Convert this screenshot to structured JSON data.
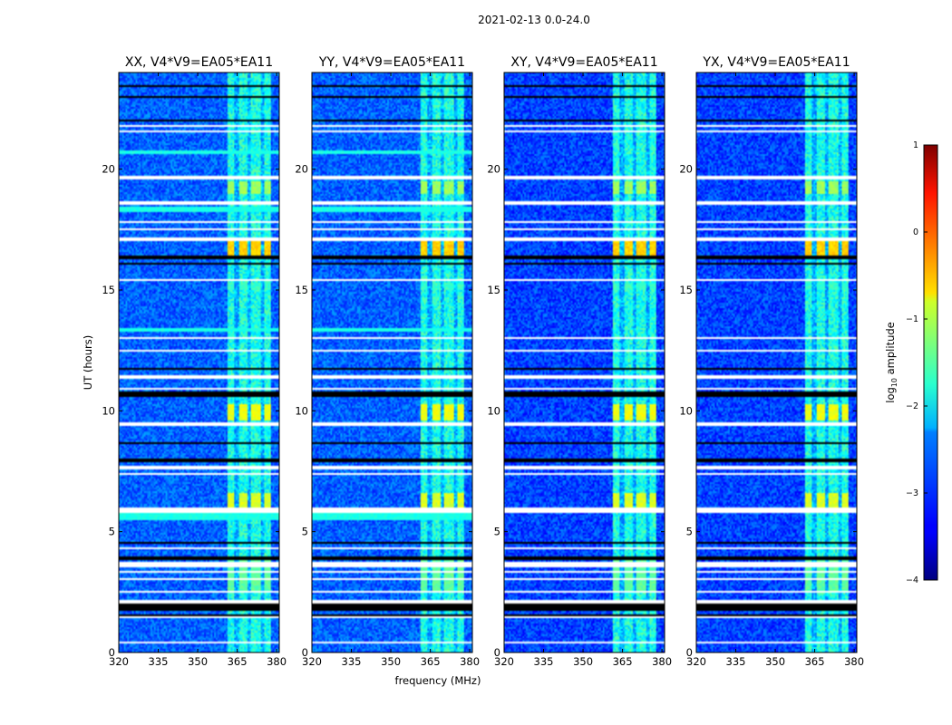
{
  "chart_data": {
    "type": "heatmap",
    "title": "2021-02-13 0.0-24.0",
    "xlabel": "frequency (MHz)",
    "ylabel": "UT (hours)",
    "xlim": [
      320,
      381
    ],
    "ylim": [
      0,
      24
    ],
    "xticks": [
      320,
      335,
      350,
      365,
      380
    ],
    "yticks": [
      0,
      5,
      10,
      15,
      20
    ],
    "panels": [
      {
        "title": "XX, V4*V9=EA05*EA11",
        "pol": "XX"
      },
      {
        "title": "YY, V4*V9=EA05*EA11",
        "pol": "YY"
      },
      {
        "title": "XY, V4*V9=EA05*EA11",
        "pol": "XY"
      },
      {
        "title": "YX, V4*V9=EA05*EA11",
        "pol": "YX"
      }
    ],
    "colorbar": {
      "label": "log10 amplitude",
      "label_main": "log",
      "label_sub": "10",
      "label_rest": " amplitude",
      "ticks": [
        -4,
        -3,
        -2,
        -1,
        0,
        1
      ],
      "tick_labels": [
        "−4",
        "−3",
        "−2",
        "−1",
        "0",
        "1"
      ],
      "range": [
        -4,
        1
      ],
      "colormap": "jet"
    },
    "rfi_band_mhz": [
      361,
      378
    ],
    "rfi_subbands_mhz": [
      [
        361,
        364
      ],
      [
        365.5,
        369
      ],
      [
        370.5,
        374
      ],
      [
        375,
        378
      ]
    ],
    "flagged_rows_hours": [
      [
        0.35,
        0.42
      ],
      [
        0.95,
        1.0
      ],
      [
        1.45,
        1.5
      ],
      [
        2.05,
        2.15
      ],
      [
        2.45,
        2.52
      ],
      [
        3.0,
        3.05
      ],
      [
        3.3,
        3.38
      ],
      [
        3.55,
        3.75
      ],
      [
        4.3,
        4.35
      ],
      [
        5.0,
        5.05
      ],
      [
        5.8,
        6.0
      ],
      [
        7.35,
        7.45
      ],
      [
        7.6,
        7.7
      ],
      [
        8.3,
        8.35
      ],
      [
        9.4,
        9.55
      ],
      [
        10.9,
        10.95
      ],
      [
        11.3,
        11.45
      ],
      [
        12.45,
        12.5
      ],
      [
        13.0,
        13.05
      ],
      [
        13.55,
        13.6
      ],
      [
        14.0,
        14.05
      ],
      [
        15.4,
        15.48
      ],
      [
        17.05,
        17.15
      ],
      [
        17.5,
        17.55
      ],
      [
        17.8,
        17.85
      ],
      [
        18.55,
        18.65
      ],
      [
        19.6,
        19.7
      ],
      [
        20.3,
        20.35
      ],
      [
        21.5,
        21.6
      ],
      [
        21.75,
        21.85
      ]
    ],
    "dead_rows_hours": [
      [
        1.5,
        1.6
      ],
      [
        1.7,
        2.0
      ],
      [
        3.85,
        4.0
      ],
      [
        4.5,
        4.55
      ],
      [
        7.9,
        8.0
      ],
      [
        8.6,
        8.7
      ],
      [
        10.6,
        10.8
      ],
      [
        11.7,
        11.75
      ],
      [
        12.8,
        12.85
      ],
      [
        16.05,
        16.15
      ],
      [
        16.25,
        16.4
      ],
      [
        22.0,
        22.05
      ],
      [
        22.95,
        23.0
      ],
      [
        23.4,
        23.45
      ]
    ],
    "bright_rows_hours": [
      [
        2.55,
        3.9,
        -1.8
      ],
      [
        6.0,
        6.6,
        -1.2
      ],
      [
        9.6,
        10.3,
        -1.1
      ],
      [
        15.0,
        15.3,
        -2.0
      ],
      [
        16.4,
        17.0,
        -0.8
      ],
      [
        19.0,
        19.5,
        -1.5
      ]
    ],
    "cyan_rows_hours": [
      [
        5.5,
        5.75
      ],
      [
        13.3,
        13.45
      ],
      [
        18.2,
        18.45
      ],
      [
        20.6,
        20.75
      ]
    ]
  }
}
